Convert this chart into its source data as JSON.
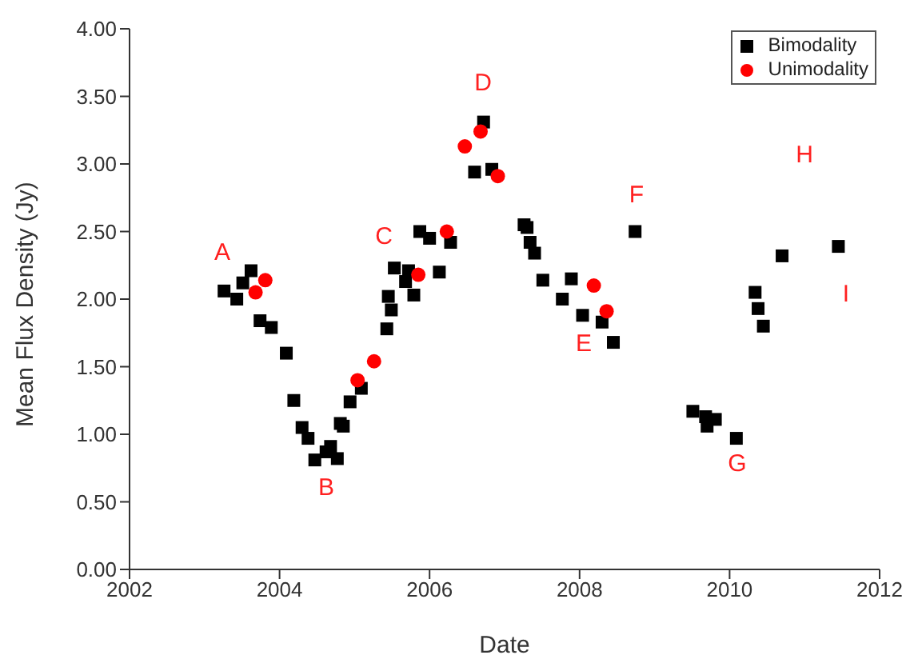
{
  "chart_data": {
    "type": "scatter",
    "xlabel": "Date",
    "ylabel": "Mean Flux Density (Jy)",
    "xlim": [
      2002,
      2012
    ],
    "xticks": [
      2002,
      2004,
      2006,
      2008,
      2010,
      2012
    ],
    "ylim": [
      0,
      4
    ],
    "yticks": [
      {
        "value": 0,
        "label": "0.00"
      },
      {
        "value": 0.5,
        "label": "0.50"
      },
      {
        "value": 1,
        "label": "1.00"
      },
      {
        "value": 1.5,
        "label": "1.50"
      },
      {
        "value": 2,
        "label": "2.00"
      },
      {
        "value": 2.5,
        "label": "2.50"
      },
      {
        "value": 3,
        "label": "3.00"
      },
      {
        "value": 3.5,
        "label": "3.50"
      },
      {
        "value": 4,
        "label": "4.00"
      }
    ],
    "grid": false,
    "legend": "top right",
    "series": [
      {
        "name": "Bimodality",
        "color": "#000000",
        "marker": "square",
        "x": [
          2003.26,
          2003.43,
          2003.51,
          2003.62,
          2003.74,
          2003.89,
          2004.09,
          2004.19,
          2004.3,
          2004.38,
          2004.47,
          2004.62,
          2004.68,
          2004.77,
          2004.81,
          2004.85,
          2004.94,
          2005.09,
          2005.43,
          2005.49,
          2005.45,
          2005.53,
          2005.68,
          2005.72,
          2005.79,
          2005.87,
          2006.0,
          2006.13,
          2006.28,
          2006.6,
          2006.72,
          2006.83,
          2007.26,
          2007.3,
          2007.34,
          2007.4,
          2007.51,
          2007.77,
          2007.89,
          2008.04,
          2008.3,
          2008.45,
          2008.74,
          2009.51,
          2009.68,
          2009.7,
          2009.81,
          2010.09,
          2010.34,
          2010.38,
          2010.45,
          2010.7,
          2011.45
        ],
        "values": [
          2.06,
          2.0,
          2.12,
          2.21,
          1.84,
          1.79,
          1.6,
          1.25,
          1.05,
          0.97,
          0.81,
          0.87,
          0.91,
          0.82,
          1.08,
          1.06,
          1.24,
          1.34,
          1.78,
          1.92,
          2.02,
          2.23,
          2.13,
          2.21,
          2.03,
          2.5,
          2.45,
          2.2,
          2.42,
          2.94,
          3.31,
          2.96,
          2.55,
          2.53,
          2.42,
          2.34,
          2.14,
          2.0,
          2.15,
          1.88,
          1.83,
          1.68,
          2.5,
          1.17,
          1.13,
          1.06,
          1.11,
          0.97,
          2.05,
          1.93,
          1.8,
          2.32,
          2.39
        ]
      },
      {
        "name": "Unimodality",
        "color": "#ff0000",
        "marker": "circle",
        "x": [
          2003.68,
          2003.81,
          2005.04,
          2005.26,
          2005.85,
          2006.23,
          2006.47,
          2006.68,
          2006.91,
          2008.19,
          2008.36
        ],
        "values": [
          2.05,
          2.14,
          1.4,
          1.54,
          2.18,
          2.5,
          3.13,
          3.24,
          2.91,
          2.1,
          1.91
        ]
      }
    ],
    "annotations": [
      "A",
      "B",
      "C",
      "D",
      "E",
      "F",
      "G",
      "H",
      "I"
    ]
  }
}
